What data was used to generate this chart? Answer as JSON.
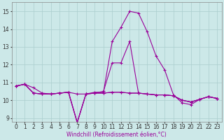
{
  "xlabel": "Windchill (Refroidissement éolien,°C)",
  "x_values": [
    0,
    1,
    2,
    3,
    4,
    5,
    6,
    7,
    8,
    9,
    10,
    11,
    12,
    13,
    14,
    15,
    16,
    17,
    18,
    19,
    20,
    21,
    22,
    23
  ],
  "line1": [
    10.8,
    10.9,
    10.7,
    10.4,
    10.35,
    10.4,
    10.45,
    10.35,
    10.35,
    10.4,
    10.4,
    10.45,
    10.45,
    10.4,
    10.4,
    10.35,
    10.3,
    10.3,
    10.25,
    10.0,
    9.9,
    10.05,
    10.2,
    10.1
  ],
  "line2": [
    10.8,
    10.9,
    10.4,
    10.35,
    10.35,
    10.4,
    10.45,
    8.75,
    10.35,
    10.4,
    10.4,
    10.45,
    10.45,
    10.4,
    10.4,
    10.35,
    10.3,
    10.3,
    10.25,
    10.0,
    9.9,
    10.05,
    10.2,
    10.1
  ],
  "line3": [
    10.8,
    10.9,
    10.4,
    10.35,
    10.35,
    10.4,
    10.45,
    8.75,
    10.35,
    10.4,
    10.5,
    12.1,
    12.1,
    13.3,
    10.4,
    10.35,
    10.3,
    10.3,
    10.25,
    10.0,
    9.9,
    10.05,
    10.2,
    10.1
  ],
  "line_main": [
    10.8,
    10.9,
    10.4,
    10.35,
    10.35,
    10.4,
    10.45,
    8.75,
    10.35,
    10.45,
    10.45,
    13.3,
    14.1,
    15.0,
    14.9,
    13.85,
    12.5,
    11.7,
    10.3,
    9.85,
    9.75,
    10.05,
    10.2,
    10.1
  ],
  "line_color": "#990099",
  "bg_color": "#cce8e8",
  "grid_color": "#b0d8d8",
  "ylim": [
    8.8,
    15.5
  ],
  "yticks": [
    9,
    10,
    11,
    12,
    13,
    14,
    15
  ],
  "xlim": [
    -0.5,
    23.5
  ]
}
